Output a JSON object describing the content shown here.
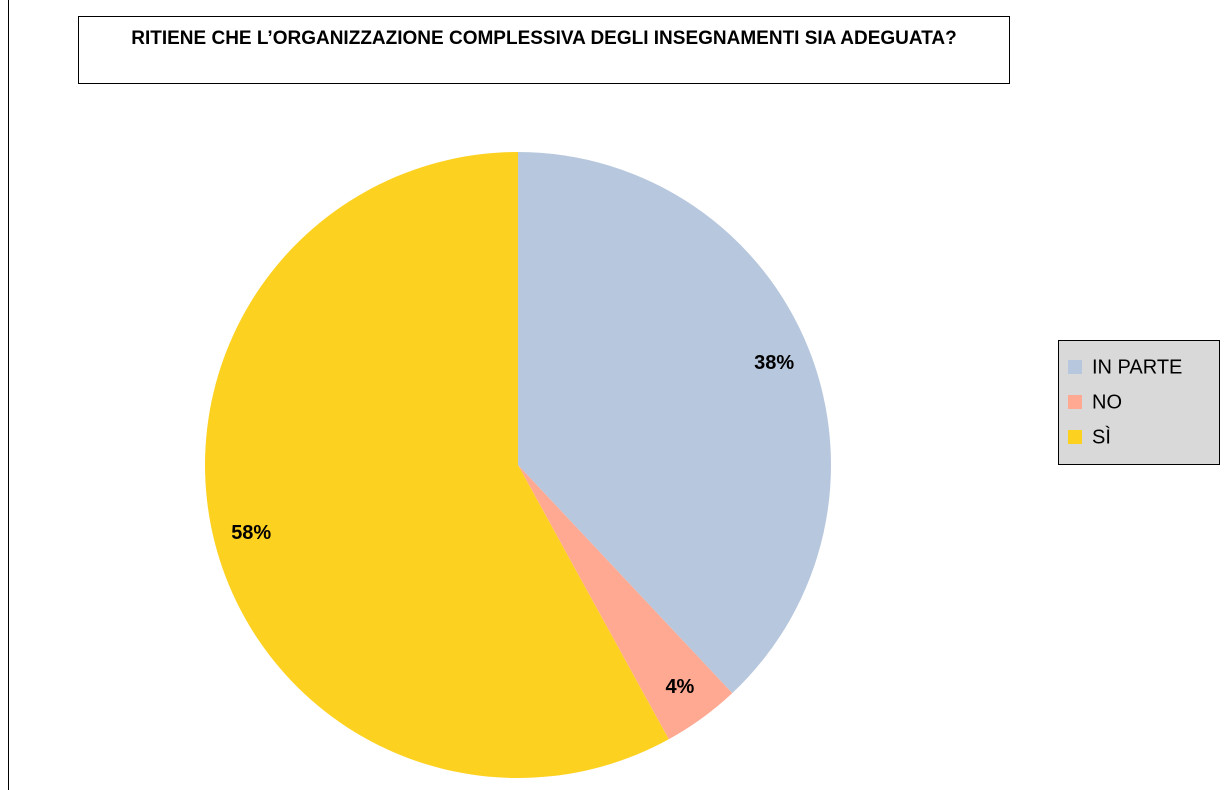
{
  "chart_data": {
    "type": "pie",
    "title": "RITIENE CHE L’ORGANIZZAZIONE COMPLESSIVA DEGLI INSEGNAMENTI SIA ADEGUATA?",
    "categories": [
      "IN PARTE",
      "NO",
      "SÌ"
    ],
    "values": [
      38,
      4,
      58
    ],
    "value_labels": [
      "38%",
      "4%",
      "58%"
    ],
    "colors": [
      "#b7c7dd",
      "#ffa993",
      "#fdd120"
    ],
    "legend": "right"
  }
}
